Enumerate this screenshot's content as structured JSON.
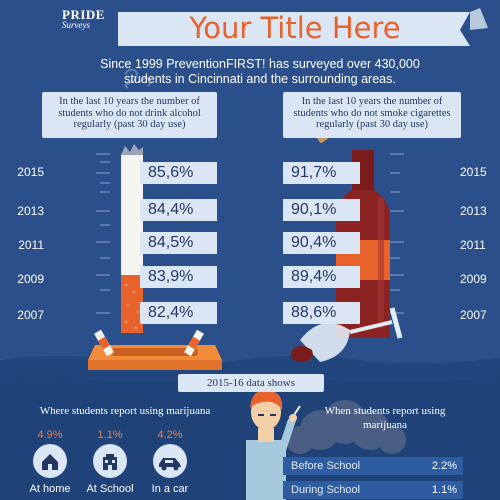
{
  "header": {
    "logo_line1": "PRIDE",
    "logo_line2": "Surveys",
    "title": "Your Title Here"
  },
  "intro": "Since 1999 PreventionFIRST! has surveyed over 430,000 students in Cincinnati and the surrounding areas.",
  "left_panel": {
    "question": "In the last 10 years the number of students who do not drink alcohol regularly (past 30 day use)",
    "rows": [
      {
        "year": "2015",
        "value": "85,6%"
      },
      {
        "year": "2013",
        "value": "84,4%"
      },
      {
        "year": "2011",
        "value": "84,5%"
      },
      {
        "year": "2009",
        "value": "83,9%"
      },
      {
        "year": "2007",
        "value": "82,4%"
      }
    ]
  },
  "right_panel": {
    "question": "In the last 10 years the number of students who do not smoke cigarettes regularly (past 30 day use)",
    "rows": [
      {
        "year": "2015",
        "value": "91,7%"
      },
      {
        "year": "2013",
        "value": "90,1%"
      },
      {
        "year": "2011",
        "value": "90,4%"
      },
      {
        "year": "2009",
        "value": "89,4%"
      },
      {
        "year": "2007",
        "value": "88,6%"
      }
    ]
  },
  "section_label": "2015-16 data shows",
  "marijuana": {
    "heading": "Where students report using marijuana",
    "places": [
      {
        "pct": "4.9%",
        "label": "At home",
        "icon": "house-icon"
      },
      {
        "pct": "1.1%",
        "label": "At School",
        "icon": "school-icon"
      },
      {
        "pct": "4.2%",
        "label": "In a car",
        "icon": "car-icon"
      }
    ]
  },
  "when": {
    "heading": "When students report using marijuana",
    "rows": [
      {
        "label": "Before School",
        "value": "2.2%"
      },
      {
        "label": "During School",
        "value": "1.1%"
      }
    ]
  },
  "colors": {
    "background": "#2a4f8a",
    "accent": "#e8622c",
    "box": "#dbe6f4"
  }
}
